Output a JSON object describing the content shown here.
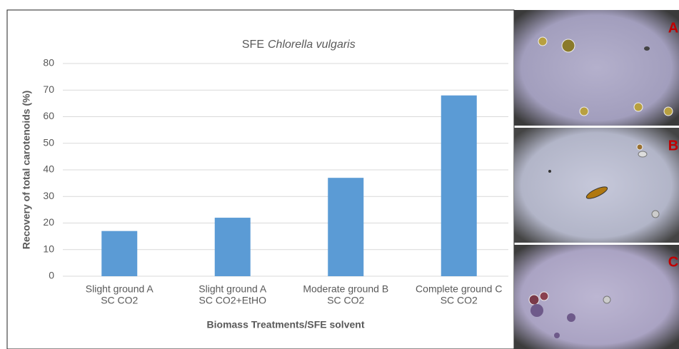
{
  "chart_data": {
    "type": "bar",
    "title": "SFE",
    "title_italic": "Chlorella vulgaris",
    "x_label": "Biomass Treatments/SFE solvent",
    "y_label": "Recovery of total carotenoids (%)",
    "categories": [
      [
        "Slight ground  A",
        "SC CO2"
      ],
      [
        "Slight ground  A",
        "SC CO2+EtHO"
      ],
      [
        "Moderate ground  B",
        "SC CO2"
      ],
      [
        "Complete ground  C",
        "SC CO2"
      ]
    ],
    "values": [
      17,
      22,
      37,
      68
    ],
    "color": "#5b9bd5",
    "ylim": [
      0,
      80
    ],
    "yticks": [
      0,
      10,
      20,
      30,
      40,
      50,
      60,
      70,
      80
    ],
    "grid": true
  },
  "panel_labels": [
    "A",
    "B",
    "C"
  ]
}
